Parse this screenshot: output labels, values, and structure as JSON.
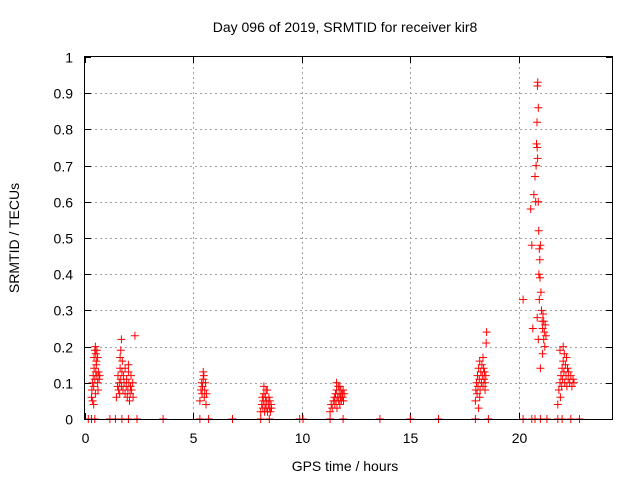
{
  "chart_data": {
    "type": "scatter",
    "title": "Day 096 of 2019, SRMTID for receiver kir8",
    "xlabel": "GPS time / hours",
    "ylabel": "SRMTID / TECUs",
    "xlim": [
      0,
      24.3
    ],
    "ylim": [
      0,
      1
    ],
    "xticks": [
      0,
      5,
      10,
      15,
      20
    ],
    "yticks": [
      0,
      0.1,
      0.2,
      0.3,
      0.4,
      0.5,
      0.6,
      0.7,
      0.8,
      0.9,
      1
    ],
    "xtick_labels": [
      "0",
      "5",
      "10",
      "15",
      "20"
    ],
    "ytick_labels": [
      "0",
      "0.1",
      "0.2",
      "0.3",
      "0.4",
      "0.5",
      "0.6",
      "0.7",
      "0.8",
      "0.9",
      "1"
    ],
    "grid": true,
    "marker": "+",
    "color": "#ff0000",
    "series": [
      {
        "name": "SRMTID",
        "points": [
          [
            0.15,
            0.0
          ],
          [
            0.3,
            0.0
          ],
          [
            0.45,
            0.0
          ],
          [
            1.15,
            0.0
          ],
          [
            1.4,
            0.0
          ],
          [
            1.7,
            0.0
          ],
          [
            2.0,
            0.0
          ],
          [
            2.4,
            0.0
          ],
          [
            3.6,
            0.0
          ],
          [
            5.3,
            0.0
          ],
          [
            5.7,
            0.0
          ],
          [
            6.8,
            0.0
          ],
          [
            8.1,
            0.0
          ],
          [
            8.5,
            0.0
          ],
          [
            9.9,
            0.0
          ],
          [
            10.05,
            0.0
          ],
          [
            11.3,
            0.0
          ],
          [
            11.9,
            0.0
          ],
          [
            13.6,
            0.0
          ],
          [
            15.0,
            0.0
          ],
          [
            16.3,
            0.0
          ],
          [
            18.0,
            0.0
          ],
          [
            18.6,
            0.0
          ],
          [
            20.2,
            0.0
          ],
          [
            20.6,
            0.0
          ],
          [
            20.75,
            0.0
          ],
          [
            21.0,
            0.0
          ],
          [
            21.3,
            0.0
          ],
          [
            21.8,
            0.0
          ],
          [
            22.0,
            0.0
          ],
          [
            22.4,
            0.0
          ],
          [
            22.8,
            0.0
          ],
          [
            0.3,
            0.06
          ],
          [
            0.32,
            0.08
          ],
          [
            0.35,
            0.1
          ],
          [
            0.38,
            0.12
          ],
          [
            0.4,
            0.09
          ],
          [
            0.42,
            0.14
          ],
          [
            0.45,
            0.11
          ],
          [
            0.48,
            0.07
          ],
          [
            0.5,
            0.13
          ],
          [
            0.52,
            0.15
          ],
          [
            0.55,
            0.12
          ],
          [
            0.58,
            0.1
          ],
          [
            0.6,
            0.08
          ],
          [
            0.62,
            0.13
          ],
          [
            0.42,
            0.17
          ],
          [
            0.45,
            0.19
          ],
          [
            0.48,
            0.2
          ],
          [
            0.5,
            0.18
          ],
          [
            0.52,
            0.16
          ],
          [
            0.55,
            0.19
          ],
          [
            0.58,
            0.17
          ],
          [
            0.35,
            0.05
          ],
          [
            0.4,
            0.04
          ],
          [
            0.65,
            0.11
          ],
          [
            0.68,
            0.12
          ],
          [
            1.45,
            0.06
          ],
          [
            1.5,
            0.09
          ],
          [
            1.52,
            0.12
          ],
          [
            1.55,
            0.08
          ],
          [
            1.58,
            0.1
          ],
          [
            1.6,
            0.07
          ],
          [
            1.62,
            0.14
          ],
          [
            1.65,
            0.11
          ],
          [
            1.68,
            0.09
          ],
          [
            1.7,
            0.13
          ],
          [
            1.72,
            0.16
          ],
          [
            1.75,
            0.08
          ],
          [
            1.78,
            0.12
          ],
          [
            1.8,
            0.1
          ],
          [
            1.65,
            0.19
          ],
          [
            1.68,
            0.22
          ],
          [
            1.62,
            0.17
          ],
          [
            1.85,
            0.07
          ],
          [
            1.9,
            0.09
          ],
          [
            1.92,
            0.11
          ],
          [
            1.95,
            0.06
          ],
          [
            1.98,
            0.08
          ],
          [
            2.0,
            0.13
          ],
          [
            2.02,
            0.1
          ],
          [
            2.05,
            0.05
          ],
          [
            2.08,
            0.07
          ],
          [
            2.1,
            0.09
          ],
          [
            2.12,
            0.12
          ],
          [
            2.15,
            0.08
          ],
          [
            2.2,
            0.1
          ],
          [
            2.22,
            0.06
          ],
          [
            2.3,
            0.23
          ],
          [
            2.0,
            0.15
          ],
          [
            1.85,
            0.14
          ],
          [
            5.3,
            0.05
          ],
          [
            5.35,
            0.08
          ],
          [
            5.38,
            0.1
          ],
          [
            5.4,
            0.07
          ],
          [
            5.42,
            0.09
          ],
          [
            5.45,
            0.11
          ],
          [
            5.48,
            0.12
          ],
          [
            5.5,
            0.06
          ],
          [
            5.52,
            0.08
          ],
          [
            5.55,
            0.1
          ],
          [
            5.58,
            0.04
          ],
          [
            5.6,
            0.07
          ],
          [
            5.45,
            0.13
          ],
          [
            8.1,
            0.02
          ],
          [
            8.15,
            0.04
          ],
          [
            8.18,
            0.06
          ],
          [
            8.2,
            0.03
          ],
          [
            8.22,
            0.05
          ],
          [
            8.25,
            0.07
          ],
          [
            8.28,
            0.02
          ],
          [
            8.3,
            0.04
          ],
          [
            8.32,
            0.06
          ],
          [
            8.35,
            0.03
          ],
          [
            8.38,
            0.05
          ],
          [
            8.4,
            0.08
          ],
          [
            8.42,
            0.02
          ],
          [
            8.45,
            0.04
          ],
          [
            8.48,
            0.06
          ],
          [
            8.5,
            0.03
          ],
          [
            8.52,
            0.05
          ],
          [
            8.55,
            0.02
          ],
          [
            8.58,
            0.04
          ],
          [
            8.6,
            0.03
          ],
          [
            8.25,
            0.09
          ],
          [
            8.35,
            0.08
          ],
          [
            11.3,
            0.02
          ],
          [
            11.35,
            0.04
          ],
          [
            11.4,
            0.03
          ],
          [
            11.45,
            0.05
          ],
          [
            11.5,
            0.06
          ],
          [
            11.52,
            0.04
          ],
          [
            11.55,
            0.07
          ],
          [
            11.58,
            0.05
          ],
          [
            11.6,
            0.08
          ],
          [
            11.62,
            0.03
          ],
          [
            11.65,
            0.06
          ],
          [
            11.68,
            0.09
          ],
          [
            11.7,
            0.05
          ],
          [
            11.72,
            0.07
          ],
          [
            11.75,
            0.04
          ],
          [
            11.78,
            0.06
          ],
          [
            11.8,
            0.08
          ],
          [
            11.82,
            0.05
          ],
          [
            11.85,
            0.07
          ],
          [
            11.88,
            0.06
          ],
          [
            11.9,
            0.08
          ],
          [
            11.92,
            0.05
          ],
          [
            11.95,
            0.07
          ],
          [
            11.6,
            0.1
          ],
          [
            11.75,
            0.09
          ],
          [
            18.0,
            0.05
          ],
          [
            18.02,
            0.08
          ],
          [
            18.05,
            0.1
          ],
          [
            18.08,
            0.07
          ],
          [
            18.1,
            0.12
          ],
          [
            18.12,
            0.09
          ],
          [
            18.15,
            0.14
          ],
          [
            18.18,
            0.11
          ],
          [
            18.2,
            0.16
          ],
          [
            18.22,
            0.08
          ],
          [
            18.25,
            0.13
          ],
          [
            18.28,
            0.1
          ],
          [
            18.3,
            0.15
          ],
          [
            18.32,
            0.12
          ],
          [
            18.35,
            0.09
          ],
          [
            18.38,
            0.14
          ],
          [
            18.4,
            0.11
          ],
          [
            18.42,
            0.13
          ],
          [
            18.45,
            0.1
          ],
          [
            18.48,
            0.12
          ],
          [
            18.5,
            0.21
          ],
          [
            18.52,
            0.24
          ],
          [
            18.15,
            0.03
          ],
          [
            18.2,
            0.06
          ],
          [
            18.45,
            0.08
          ],
          [
            18.35,
            0.17
          ],
          [
            20.2,
            0.33
          ],
          [
            20.55,
            0.58
          ],
          [
            20.6,
            0.48
          ],
          [
            20.65,
            0.25
          ],
          [
            20.7,
            0.62
          ],
          [
            20.75,
            0.67
          ],
          [
            20.78,
            0.6
          ],
          [
            20.8,
            0.7
          ],
          [
            20.82,
            0.76
          ],
          [
            20.84,
            0.82
          ],
          [
            20.86,
            0.92
          ],
          [
            20.88,
            0.93
          ],
          [
            20.9,
            0.86
          ],
          [
            20.85,
            0.75
          ],
          [
            20.87,
            0.72
          ],
          [
            20.9,
            0.6
          ],
          [
            20.92,
            0.52
          ],
          [
            20.95,
            0.47
          ],
          [
            20.97,
            0.44
          ],
          [
            21.0,
            0.48
          ],
          [
            20.93,
            0.4
          ],
          [
            20.98,
            0.39
          ],
          [
            21.02,
            0.35
          ],
          [
            20.95,
            0.33
          ],
          [
            21.05,
            0.3
          ],
          [
            21.08,
            0.27
          ],
          [
            21.1,
            0.25
          ],
          [
            21.12,
            0.29
          ],
          [
            21.15,
            0.22
          ],
          [
            21.18,
            0.24
          ],
          [
            21.2,
            0.2
          ],
          [
            21.22,
            0.26
          ],
          [
            21.1,
            0.18
          ],
          [
            21.0,
            0.14
          ],
          [
            20.85,
            0.28
          ],
          [
            20.9,
            0.22
          ],
          [
            21.25,
            0.23
          ],
          [
            21.15,
            0.27
          ],
          [
            21.8,
            0.04
          ],
          [
            21.85,
            0.08
          ],
          [
            21.9,
            0.1
          ],
          [
            21.92,
            0.06
          ],
          [
            21.95,
            0.12
          ],
          [
            21.98,
            0.09
          ],
          [
            22.0,
            0.14
          ],
          [
            22.02,
            0.11
          ],
          [
            22.05,
            0.16
          ],
          [
            22.08,
            0.13
          ],
          [
            22.1,
            0.18
          ],
          [
            22.12,
            0.1
          ],
          [
            22.15,
            0.15
          ],
          [
            22.18,
            0.12
          ],
          [
            22.2,
            0.17
          ],
          [
            22.22,
            0.09
          ],
          [
            22.25,
            0.14
          ],
          [
            22.28,
            0.11
          ],
          [
            22.3,
            0.13
          ],
          [
            22.35,
            0.1
          ],
          [
            22.4,
            0.12
          ],
          [
            22.45,
            0.09
          ],
          [
            22.5,
            0.11
          ],
          [
            21.9,
            0.19
          ],
          [
            22.05,
            0.2
          ],
          [
            22.55,
            0.1
          ]
        ]
      }
    ]
  }
}
